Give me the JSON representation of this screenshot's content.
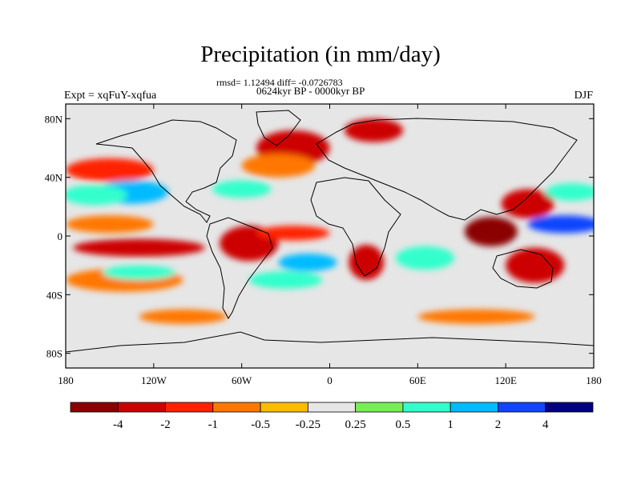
{
  "title": "Precipitation (in mm/day)",
  "stats_line": "rmsd= 1.12494 diff= -0.0726783",
  "period_line": "0624kyr BP - 0000kyr BP",
  "experiment_label": "Expt = xqFuY-xqfua",
  "season_label": "DJF",
  "axes": {
    "lon_ticks": [
      "180",
      "120W",
      "60W",
      "0",
      "60E",
      "120E",
      "180"
    ],
    "lon_values": [
      -180,
      -120,
      -60,
      0,
      60,
      120,
      180
    ],
    "lat_ticks": [
      "80N",
      "40N",
      "0",
      "40S",
      "80S"
    ],
    "lat_values": [
      80,
      40,
      0,
      -40,
      -80
    ],
    "lon_range": [
      -180,
      180
    ],
    "lat_range": [
      -90,
      90
    ]
  },
  "colorbar": {
    "labels": [
      "-4",
      "-2",
      "-1",
      "-0.5",
      "-0.25",
      "0.25",
      "0.5",
      "1",
      "2",
      "4"
    ],
    "colors": [
      "#8b0000",
      "#cd0000",
      "#ff2200",
      "#ff7700",
      "#ffbb00",
      "#e6e6e6",
      "#77ee55",
      "#33ffcc",
      "#00bbff",
      "#1144ff",
      "#000080"
    ]
  },
  "background_color": "#e6e6e6",
  "anomaly_regions": [
    {
      "name": "north-pacific-warm-band",
      "level": "-1",
      "lon": -150,
      "lat": 45,
      "rlon": 30,
      "rlat": 8
    },
    {
      "name": "north-pacific-blue",
      "level": "2",
      "lon": -135,
      "lat": 30,
      "rlon": 25,
      "rlat": 8
    },
    {
      "name": "north-pacific-cyan",
      "level": "1",
      "lon": -160,
      "lat": 28,
      "rlon": 22,
      "rlat": 7
    },
    {
      "name": "north-atlantic-red",
      "level": "-2",
      "lon": -25,
      "lat": 60,
      "rlon": 25,
      "rlat": 12
    },
    {
      "name": "north-atlantic-orange",
      "level": "-0.5",
      "lon": -35,
      "lat": 48,
      "rlon": 25,
      "rlat": 8
    },
    {
      "name": "eurasia-arctic-red",
      "level": "-2",
      "lon": 30,
      "lat": 72,
      "rlon": 20,
      "rlat": 8
    },
    {
      "name": "central-atlantic-blue",
      "level": "1",
      "lon": -60,
      "lat": 32,
      "rlon": 20,
      "rlat": 6
    },
    {
      "name": "tropical-pacific-orange",
      "level": "-0.5",
      "lon": -150,
      "lat": 8,
      "rlon": 30,
      "rlat": 6
    },
    {
      "name": "tropical-pacific-red",
      "level": "-2",
      "lon": -130,
      "lat": -8,
      "rlon": 45,
      "rlat": 6
    },
    {
      "name": "south-pacific-orange",
      "level": "-0.5",
      "lon": -140,
      "lat": -30,
      "rlon": 40,
      "rlat": 8
    },
    {
      "name": "south-pacific-cyan",
      "level": "1",
      "lon": -130,
      "lat": -25,
      "rlon": 25,
      "rlat": 5
    },
    {
      "name": "amazon-red",
      "level": "-2",
      "lon": -55,
      "lat": -5,
      "rlon": 20,
      "rlat": 12
    },
    {
      "name": "atlantic-itcz-red",
      "level": "-1",
      "lon": -25,
      "lat": 2,
      "rlon": 25,
      "rlat": 5
    },
    {
      "name": "south-atlantic-blue",
      "level": "2",
      "lon": -15,
      "lat": -18,
      "rlon": 20,
      "rlat": 6
    },
    {
      "name": "south-atlantic-cyan",
      "level": "1",
      "lon": -30,
      "lat": -30,
      "rlon": 25,
      "rlat": 6
    },
    {
      "name": "southern-africa-red",
      "level": "-2",
      "lon": 25,
      "lat": -18,
      "rlon": 12,
      "rlat": 12
    },
    {
      "name": "indian-ocean-cyan",
      "level": "1",
      "lon": 65,
      "lat": -15,
      "rlon": 20,
      "rlat": 8
    },
    {
      "name": "maritime-continent-darkred",
      "level": "-4",
      "lon": 110,
      "lat": 3,
      "rlon": 18,
      "rlat": 10
    },
    {
      "name": "west-pacific-red",
      "level": "-2",
      "lon": 135,
      "lat": 22,
      "rlon": 18,
      "rlat": 10
    },
    {
      "name": "west-pacific-blue",
      "level": "4",
      "lon": 160,
      "lat": 8,
      "rlon": 25,
      "rlat": 6
    },
    {
      "name": "west-pacific-cyan",
      "level": "1",
      "lon": 165,
      "lat": 30,
      "rlon": 18,
      "rlat": 6
    },
    {
      "name": "australia-red",
      "level": "-2",
      "lon": 140,
      "lat": -20,
      "rlon": 20,
      "rlat": 12
    },
    {
      "name": "southern-ocean-orange",
      "level": "-0.5",
      "lon": -100,
      "lat": -55,
      "rlon": 30,
      "rlat": 5
    },
    {
      "name": "southern-indian-orange",
      "level": "-0.5",
      "lon": 100,
      "lat": -55,
      "rlon": 40,
      "rlat": 5
    }
  ]
}
